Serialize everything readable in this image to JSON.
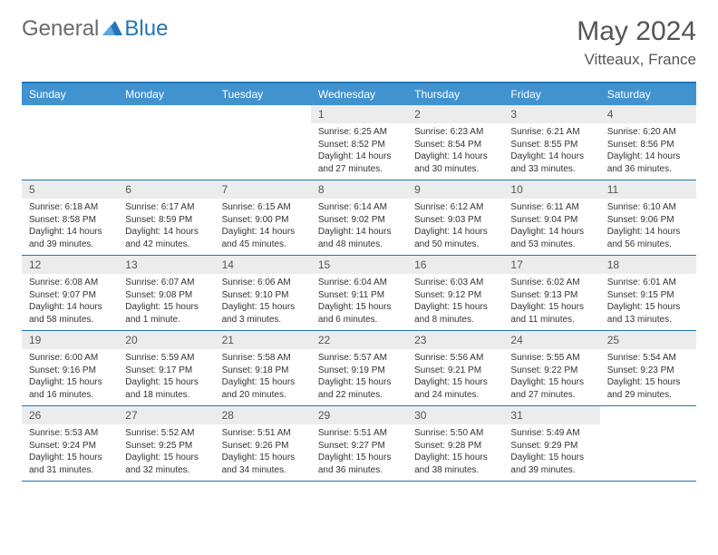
{
  "logo": {
    "text1": "General",
    "text2": "Blue"
  },
  "title": "May 2024",
  "location": "Vitteaux, France",
  "colors": {
    "header_bg": "#4193d0",
    "border": "#2176b6",
    "daynum_bg": "#ececec",
    "text": "#333333",
    "title_text": "#555555",
    "logo_gray": "#6a6a6a",
    "logo_blue": "#2176b6",
    "white": "#ffffff"
  },
  "day_labels": [
    "Sunday",
    "Monday",
    "Tuesday",
    "Wednesday",
    "Thursday",
    "Friday",
    "Saturday"
  ],
  "weeks": [
    [
      {
        "n": "",
        "t": ""
      },
      {
        "n": "",
        "t": ""
      },
      {
        "n": "",
        "t": ""
      },
      {
        "n": "1",
        "t": "Sunrise: 6:25 AM\nSunset: 8:52 PM\nDaylight: 14 hours and 27 minutes."
      },
      {
        "n": "2",
        "t": "Sunrise: 6:23 AM\nSunset: 8:54 PM\nDaylight: 14 hours and 30 minutes."
      },
      {
        "n": "3",
        "t": "Sunrise: 6:21 AM\nSunset: 8:55 PM\nDaylight: 14 hours and 33 minutes."
      },
      {
        "n": "4",
        "t": "Sunrise: 6:20 AM\nSunset: 8:56 PM\nDaylight: 14 hours and 36 minutes."
      }
    ],
    [
      {
        "n": "5",
        "t": "Sunrise: 6:18 AM\nSunset: 8:58 PM\nDaylight: 14 hours and 39 minutes."
      },
      {
        "n": "6",
        "t": "Sunrise: 6:17 AM\nSunset: 8:59 PM\nDaylight: 14 hours and 42 minutes."
      },
      {
        "n": "7",
        "t": "Sunrise: 6:15 AM\nSunset: 9:00 PM\nDaylight: 14 hours and 45 minutes."
      },
      {
        "n": "8",
        "t": "Sunrise: 6:14 AM\nSunset: 9:02 PM\nDaylight: 14 hours and 48 minutes."
      },
      {
        "n": "9",
        "t": "Sunrise: 6:12 AM\nSunset: 9:03 PM\nDaylight: 14 hours and 50 minutes."
      },
      {
        "n": "10",
        "t": "Sunrise: 6:11 AM\nSunset: 9:04 PM\nDaylight: 14 hours and 53 minutes."
      },
      {
        "n": "11",
        "t": "Sunrise: 6:10 AM\nSunset: 9:06 PM\nDaylight: 14 hours and 56 minutes."
      }
    ],
    [
      {
        "n": "12",
        "t": "Sunrise: 6:08 AM\nSunset: 9:07 PM\nDaylight: 14 hours and 58 minutes."
      },
      {
        "n": "13",
        "t": "Sunrise: 6:07 AM\nSunset: 9:08 PM\nDaylight: 15 hours and 1 minute."
      },
      {
        "n": "14",
        "t": "Sunrise: 6:06 AM\nSunset: 9:10 PM\nDaylight: 15 hours and 3 minutes."
      },
      {
        "n": "15",
        "t": "Sunrise: 6:04 AM\nSunset: 9:11 PM\nDaylight: 15 hours and 6 minutes."
      },
      {
        "n": "16",
        "t": "Sunrise: 6:03 AM\nSunset: 9:12 PM\nDaylight: 15 hours and 8 minutes."
      },
      {
        "n": "17",
        "t": "Sunrise: 6:02 AM\nSunset: 9:13 PM\nDaylight: 15 hours and 11 minutes."
      },
      {
        "n": "18",
        "t": "Sunrise: 6:01 AM\nSunset: 9:15 PM\nDaylight: 15 hours and 13 minutes."
      }
    ],
    [
      {
        "n": "19",
        "t": "Sunrise: 6:00 AM\nSunset: 9:16 PM\nDaylight: 15 hours and 16 minutes."
      },
      {
        "n": "20",
        "t": "Sunrise: 5:59 AM\nSunset: 9:17 PM\nDaylight: 15 hours and 18 minutes."
      },
      {
        "n": "21",
        "t": "Sunrise: 5:58 AM\nSunset: 9:18 PM\nDaylight: 15 hours and 20 minutes."
      },
      {
        "n": "22",
        "t": "Sunrise: 5:57 AM\nSunset: 9:19 PM\nDaylight: 15 hours and 22 minutes."
      },
      {
        "n": "23",
        "t": "Sunrise: 5:56 AM\nSunset: 9:21 PM\nDaylight: 15 hours and 24 minutes."
      },
      {
        "n": "24",
        "t": "Sunrise: 5:55 AM\nSunset: 9:22 PM\nDaylight: 15 hours and 27 minutes."
      },
      {
        "n": "25",
        "t": "Sunrise: 5:54 AM\nSunset: 9:23 PM\nDaylight: 15 hours and 29 minutes."
      }
    ],
    [
      {
        "n": "26",
        "t": "Sunrise: 5:53 AM\nSunset: 9:24 PM\nDaylight: 15 hours and 31 minutes."
      },
      {
        "n": "27",
        "t": "Sunrise: 5:52 AM\nSunset: 9:25 PM\nDaylight: 15 hours and 32 minutes."
      },
      {
        "n": "28",
        "t": "Sunrise: 5:51 AM\nSunset: 9:26 PM\nDaylight: 15 hours and 34 minutes."
      },
      {
        "n": "29",
        "t": "Sunrise: 5:51 AM\nSunset: 9:27 PM\nDaylight: 15 hours and 36 minutes."
      },
      {
        "n": "30",
        "t": "Sunrise: 5:50 AM\nSunset: 9:28 PM\nDaylight: 15 hours and 38 minutes."
      },
      {
        "n": "31",
        "t": "Sunrise: 5:49 AM\nSunset: 9:29 PM\nDaylight: 15 hours and 39 minutes."
      },
      {
        "n": "",
        "t": ""
      }
    ]
  ]
}
